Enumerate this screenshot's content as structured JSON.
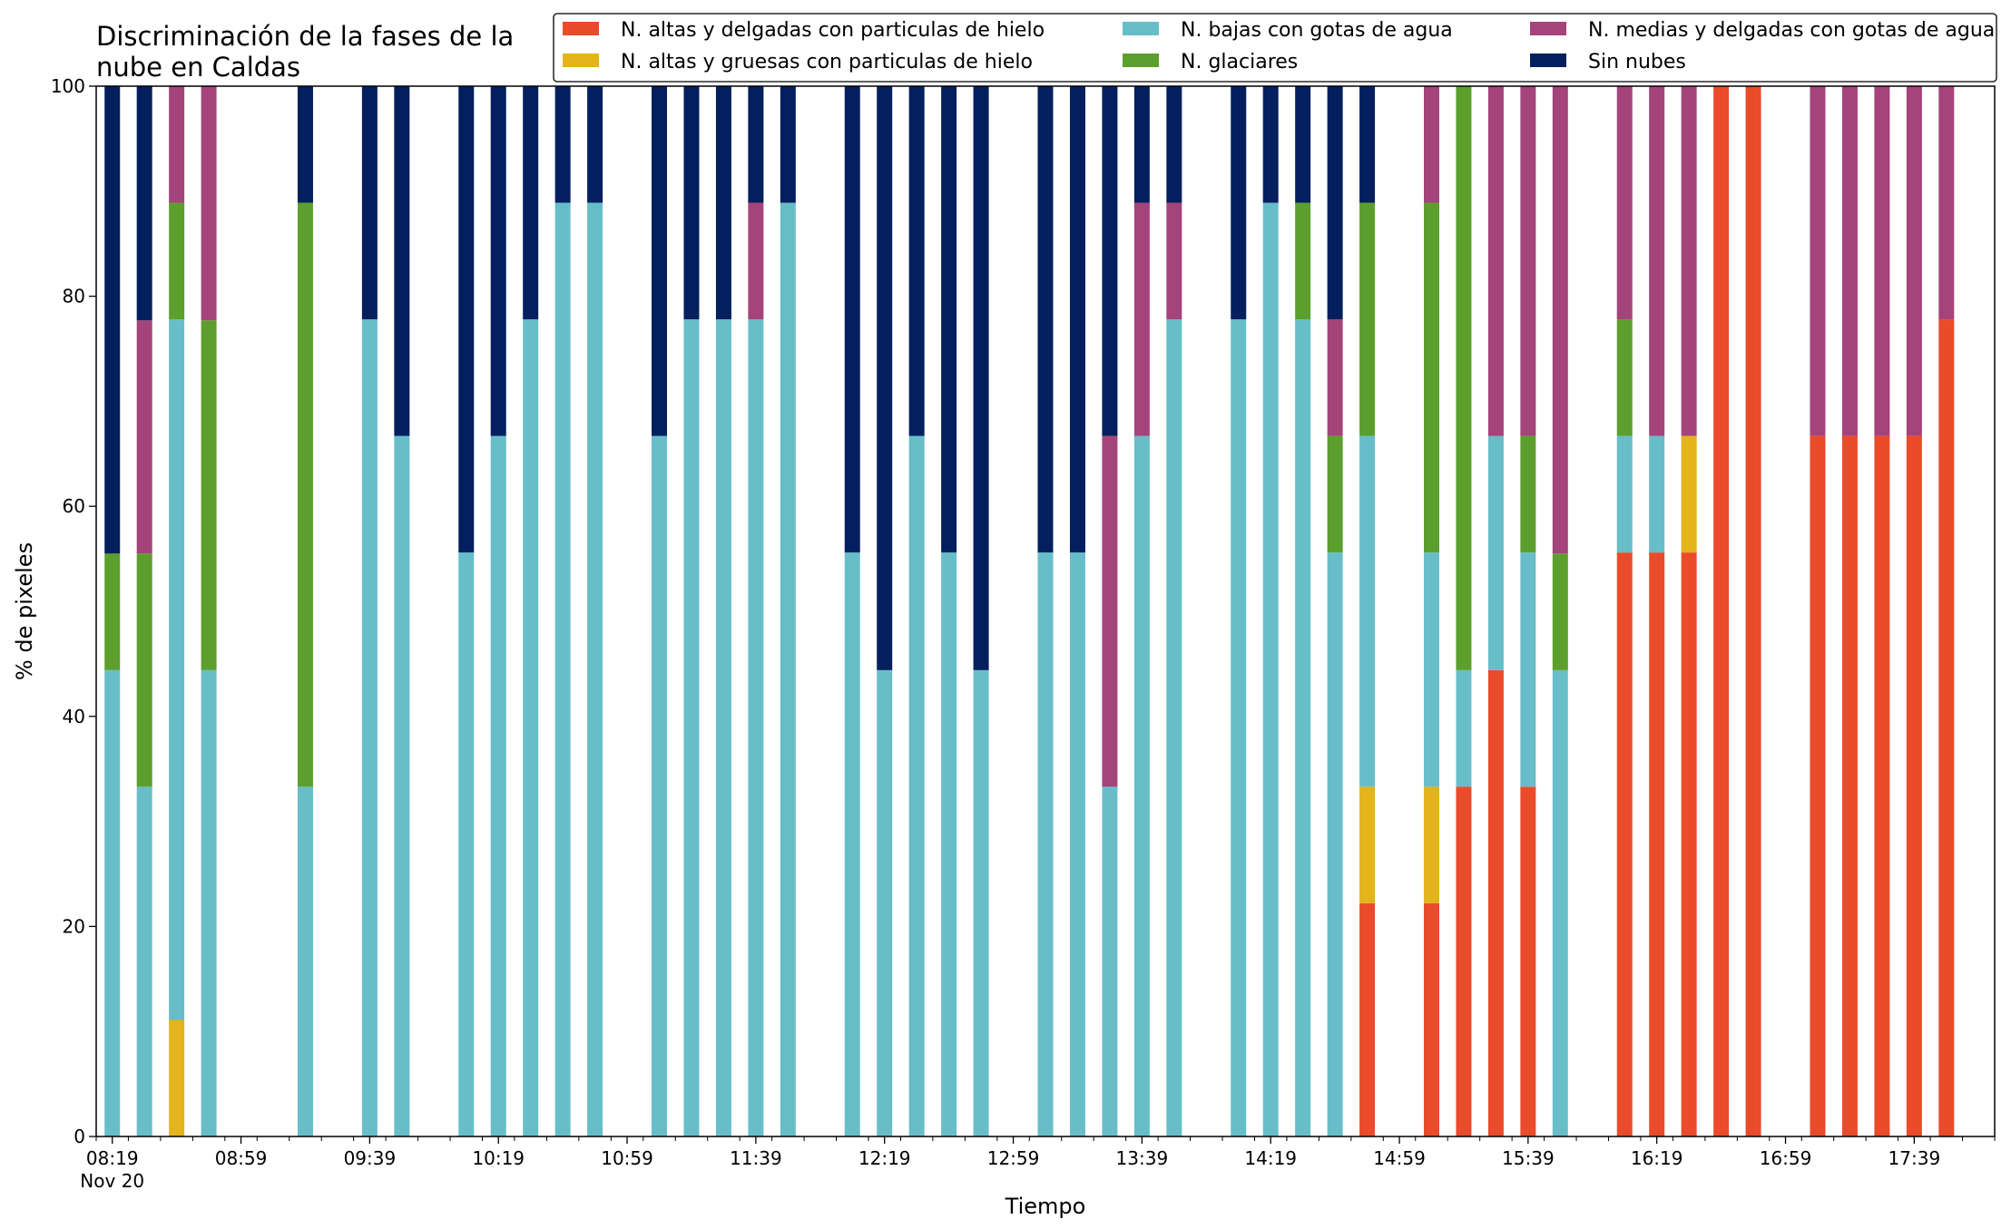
{
  "chart_data": {
    "type": "bar",
    "stacked": true,
    "title_lines": [
      "Discriminación de la fases de la",
      "nube en Caldas"
    ],
    "xlabel": "Tiempo",
    "ylabel": "% de pixeles",
    "ylim": [
      0,
      100
    ],
    "yticks": [
      0,
      20,
      40,
      60,
      80,
      100
    ],
    "xtick_labels": [
      "08:19",
      "08:59",
      "09:39",
      "10:19",
      "10:59",
      "11:39",
      "12:19",
      "12:59",
      "13:39",
      "14:19",
      "14:59",
      "15:39",
      "16:19",
      "16:59",
      "17:39"
    ],
    "xtick_date": "Nov 20",
    "x_start": "08:19",
    "x_step_minutes": 10,
    "slots": 59,
    "legend_position": "top-right",
    "series": [
      {
        "name": "N. altas y delgadas con particulas de hielo",
        "color": "#ea4b2b"
      },
      {
        "name": "N. altas y gruesas con particulas de hielo",
        "color": "#e3b41b"
      },
      {
        "name": "N. bajas con gotas de agua",
        "color": "#67bec9"
      },
      {
        "name": "N. glaciares",
        "color": "#5c9f2c"
      },
      {
        "name": "N. medias y delgadas con gotas de agua",
        "color": "#a4447a"
      },
      {
        "name": "Sin nubes",
        "color": "#031f5e"
      }
    ],
    "bars": [
      {
        "time": "08:19",
        "values": [
          0,
          0,
          44.4,
          11.1,
          0,
          44.5
        ]
      },
      {
        "time": "08:29",
        "values": [
          0,
          0,
          33.3,
          22.2,
          22.2,
          22.3
        ]
      },
      {
        "time": "08:39",
        "values": [
          0,
          11.1,
          66.7,
          11.1,
          11.1,
          0
        ]
      },
      {
        "time": "08:49",
        "values": [
          0,
          0,
          44.4,
          33.3,
          22.3,
          0
        ]
      },
      {
        "time": "09:19",
        "values": [
          0,
          0,
          33.3,
          55.6,
          0,
          11.1
        ]
      },
      {
        "time": "09:39",
        "values": [
          0,
          0,
          77.8,
          0,
          0,
          22.2
        ]
      },
      {
        "time": "09:49",
        "values": [
          0,
          0,
          66.7,
          0,
          0,
          33.3
        ]
      },
      {
        "time": "10:09",
        "values": [
          0,
          0,
          55.6,
          0,
          0,
          44.4
        ]
      },
      {
        "time": "10:19",
        "values": [
          0,
          0,
          66.7,
          0,
          0,
          33.3
        ]
      },
      {
        "time": "10:29",
        "values": [
          0,
          0,
          77.8,
          0,
          0,
          22.2
        ]
      },
      {
        "time": "10:39",
        "values": [
          0,
          0,
          88.9,
          0,
          0,
          11.1
        ]
      },
      {
        "time": "10:49",
        "values": [
          0,
          0,
          88.9,
          0,
          0,
          11.1
        ]
      },
      {
        "time": "11:09",
        "values": [
          0,
          0,
          66.7,
          0,
          0,
          33.3
        ]
      },
      {
        "time": "11:19",
        "values": [
          0,
          0,
          77.8,
          0,
          0,
          22.2
        ]
      },
      {
        "time": "11:29",
        "values": [
          0,
          0,
          77.8,
          0,
          0,
          22.2
        ]
      },
      {
        "time": "11:39",
        "values": [
          0,
          0,
          77.8,
          0,
          11.1,
          11.1
        ]
      },
      {
        "time": "11:49",
        "values": [
          0,
          0,
          88.9,
          0,
          0,
          11.1
        ]
      },
      {
        "time": "12:09",
        "values": [
          0,
          0,
          55.6,
          0,
          0,
          44.4
        ]
      },
      {
        "time": "12:19",
        "values": [
          0,
          0,
          44.4,
          0,
          0,
          55.6
        ]
      },
      {
        "time": "12:29",
        "values": [
          0,
          0,
          66.7,
          0,
          0,
          33.3
        ]
      },
      {
        "time": "12:39",
        "values": [
          0,
          0,
          55.6,
          0,
          0,
          44.4
        ]
      },
      {
        "time": "12:49",
        "values": [
          0,
          0,
          44.4,
          0,
          0,
          55.6
        ]
      },
      {
        "time": "13:09",
        "values": [
          0,
          0,
          55.6,
          0,
          0,
          44.4
        ]
      },
      {
        "time": "13:19",
        "values": [
          0,
          0,
          55.6,
          0,
          0,
          44.4
        ]
      },
      {
        "time": "13:29",
        "values": [
          0,
          0,
          33.3,
          0,
          33.4,
          33.3
        ]
      },
      {
        "time": "13:39",
        "values": [
          0,
          0,
          66.7,
          0,
          22.2,
          11.1
        ]
      },
      {
        "time": "13:49",
        "values": [
          0,
          0,
          77.8,
          0,
          11.1,
          11.1
        ]
      },
      {
        "time": "14:09",
        "values": [
          0,
          0,
          77.8,
          0,
          0,
          22.2
        ]
      },
      {
        "time": "14:19",
        "values": [
          0,
          0,
          88.9,
          0,
          0,
          11.1
        ]
      },
      {
        "time": "14:29",
        "values": [
          0,
          0,
          77.8,
          11.1,
          0,
          11.1
        ]
      },
      {
        "time": "14:39",
        "values": [
          0,
          0,
          55.6,
          11.1,
          11.1,
          22.2
        ]
      },
      {
        "time": "14:49",
        "values": [
          22.2,
          11.1,
          33.4,
          22.2,
          0,
          11.1
        ]
      },
      {
        "time": "15:09",
        "values": [
          22.2,
          11.1,
          22.3,
          33.3,
          11.1,
          0
        ]
      },
      {
        "time": "15:19",
        "values": [
          33.3,
          0,
          11.1,
          55.6,
          0,
          0
        ]
      },
      {
        "time": "15:29",
        "values": [
          44.4,
          0,
          22.3,
          0,
          33.3,
          0
        ]
      },
      {
        "time": "15:39",
        "values": [
          33.3,
          0,
          22.3,
          11.1,
          33.3,
          0
        ]
      },
      {
        "time": "15:49",
        "values": [
          0,
          0,
          44.4,
          11.1,
          44.5,
          0
        ]
      },
      {
        "time": "16:09",
        "values": [
          55.6,
          0,
          11.1,
          11.1,
          22.2,
          0
        ]
      },
      {
        "time": "16:19",
        "values": [
          55.6,
          0,
          11.1,
          0,
          33.3,
          0
        ]
      },
      {
        "time": "16:29",
        "values": [
          55.6,
          11.1,
          0,
          0,
          33.3,
          0
        ]
      },
      {
        "time": "16:39",
        "values": [
          100,
          0,
          0,
          0,
          0,
          0
        ]
      },
      {
        "time": "16:49",
        "values": [
          100,
          0,
          0,
          0,
          0,
          0
        ]
      },
      {
        "time": "17:09",
        "values": [
          66.7,
          0,
          0,
          0,
          33.3,
          0
        ]
      },
      {
        "time": "17:19",
        "values": [
          66.7,
          0,
          0,
          0,
          33.3,
          0
        ]
      },
      {
        "time": "17:29",
        "values": [
          66.7,
          0,
          0,
          0,
          33.3,
          0
        ]
      },
      {
        "time": "17:39",
        "values": [
          66.7,
          0,
          0,
          0,
          33.3,
          0
        ]
      },
      {
        "time": "17:49",
        "values": [
          77.8,
          0,
          0,
          0,
          22.2,
          0
        ]
      }
    ]
  }
}
